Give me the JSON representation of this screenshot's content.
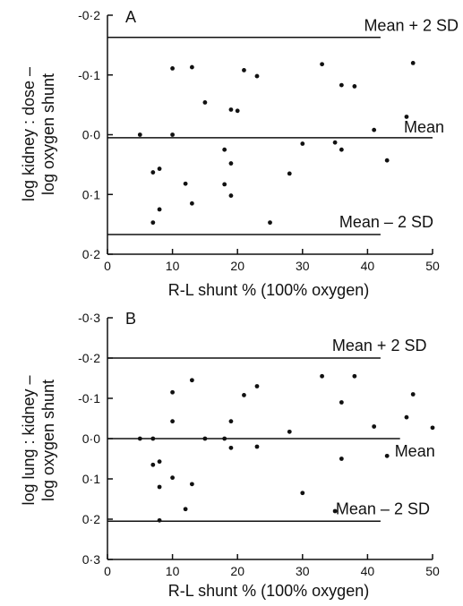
{
  "chart_data": [
    {
      "type": "scatter",
      "panel_label": "A",
      "xlabel": "R-L shunt % (100% oxygen)",
      "ylabel_line1": "log kidney : dose –",
      "ylabel_line2": "log oxygen shunt",
      "xlim": [
        0,
        50
      ],
      "ylim": [
        -0.2,
        0.2
      ],
      "y_inverted": true,
      "xticks": [
        "0",
        "10",
        "20",
        "30",
        "40",
        "50"
      ],
      "yticks": [
        "-0·2",
        "-0·1",
        "0·0",
        "0·1",
        "0·2"
      ],
      "reference_lines": [
        {
          "label": "Mean + 2 SD",
          "y": -0.163,
          "x_from": 0,
          "x_to": 42
        },
        {
          "label": "Mean",
          "y": 0.005,
          "x_from": 0,
          "x_to": 50
        },
        {
          "label": "Mean – 2 SD",
          "y": 0.167,
          "x_from": 0,
          "x_to": 42
        }
      ],
      "points": [
        {
          "x": 5,
          "y": 0.0
        },
        {
          "x": 7,
          "y": 0.063
        },
        {
          "x": 7,
          "y": 0.147
        },
        {
          "x": 8,
          "y": 0.057
        },
        {
          "x": 8,
          "y": 0.125
        },
        {
          "x": 10,
          "y": -0.111
        },
        {
          "x": 10,
          "y": 0.0
        },
        {
          "x": 12,
          "y": 0.082
        },
        {
          "x": 13,
          "y": -0.113
        },
        {
          "x": 13,
          "y": 0.115
        },
        {
          "x": 15,
          "y": -0.054
        },
        {
          "x": 18,
          "y": 0.025
        },
        {
          "x": 18,
          "y": 0.083
        },
        {
          "x": 19,
          "y": -0.042
        },
        {
          "x": 19,
          "y": 0.048
        },
        {
          "x": 19,
          "y": 0.102
        },
        {
          "x": 20,
          "y": -0.04
        },
        {
          "x": 21,
          "y": -0.108
        },
        {
          "x": 23,
          "y": -0.098
        },
        {
          "x": 25,
          "y": 0.147
        },
        {
          "x": 28,
          "y": 0.065
        },
        {
          "x": 30,
          "y": 0.015
        },
        {
          "x": 33,
          "y": -0.118
        },
        {
          "x": 35,
          "y": 0.013
        },
        {
          "x": 36,
          "y": -0.083
        },
        {
          "x": 36,
          "y": 0.025
        },
        {
          "x": 38,
          "y": -0.081
        },
        {
          "x": 41,
          "y": -0.008
        },
        {
          "x": 43,
          "y": 0.043
        },
        {
          "x": 46,
          "y": -0.03
        },
        {
          "x": 47,
          "y": -0.12
        }
      ]
    },
    {
      "type": "scatter",
      "panel_label": "B",
      "xlabel": "R-L shunt % (100% oxygen)",
      "ylabel_line1": "log lung : kidney –",
      "ylabel_line2": "log oxygen shunt",
      "xlim": [
        0,
        50
      ],
      "ylim": [
        -0.3,
        0.3
      ],
      "y_inverted": true,
      "xticks": [
        "0",
        "10",
        "20",
        "30",
        "40",
        "50"
      ],
      "yticks": [
        "-0·3",
        "-0·2",
        "-0·1",
        "0·0",
        "0·1",
        "0·2",
        "0·3"
      ],
      "reference_lines": [
        {
          "label": "Mean + 2 SD",
          "y": -0.2,
          "x_from": 0,
          "x_to": 42
        },
        {
          "label": "Mean",
          "y": 0.0,
          "x_from": 0,
          "x_to": 45
        },
        {
          "label": "Mean – 2 SD",
          "y": 0.205,
          "x_from": 0,
          "x_to": 42
        }
      ],
      "points": [
        {
          "x": 5,
          "y": 0.0
        },
        {
          "x": 7,
          "y": 0.0
        },
        {
          "x": 7,
          "y": 0.065
        },
        {
          "x": 8,
          "y": 0.057
        },
        {
          "x": 8,
          "y": 0.12
        },
        {
          "x": 8,
          "y": 0.203
        },
        {
          "x": 10,
          "y": -0.115
        },
        {
          "x": 10,
          "y": -0.043
        },
        {
          "x": 10,
          "y": 0.097
        },
        {
          "x": 12,
          "y": 0.175
        },
        {
          "x": 13,
          "y": -0.145
        },
        {
          "x": 13,
          "y": 0.113
        },
        {
          "x": 15,
          "y": 0.0
        },
        {
          "x": 18,
          "y": 0.0
        },
        {
          "x": 19,
          "y": -0.043
        },
        {
          "x": 19,
          "y": 0.023
        },
        {
          "x": 21,
          "y": -0.108
        },
        {
          "x": 23,
          "y": -0.13
        },
        {
          "x": 23,
          "y": 0.02
        },
        {
          "x": 28,
          "y": -0.017
        },
        {
          "x": 30,
          "y": 0.135
        },
        {
          "x": 33,
          "y": -0.155
        },
        {
          "x": 35,
          "y": 0.18
        },
        {
          "x": 36,
          "y": -0.09
        },
        {
          "x": 36,
          "y": 0.05
        },
        {
          "x": 38,
          "y": -0.155
        },
        {
          "x": 41,
          "y": -0.03
        },
        {
          "x": 43,
          "y": 0.043
        },
        {
          "x": 46,
          "y": -0.053
        },
        {
          "x": 47,
          "y": -0.11
        },
        {
          "x": 50,
          "y": -0.027
        }
      ]
    }
  ]
}
